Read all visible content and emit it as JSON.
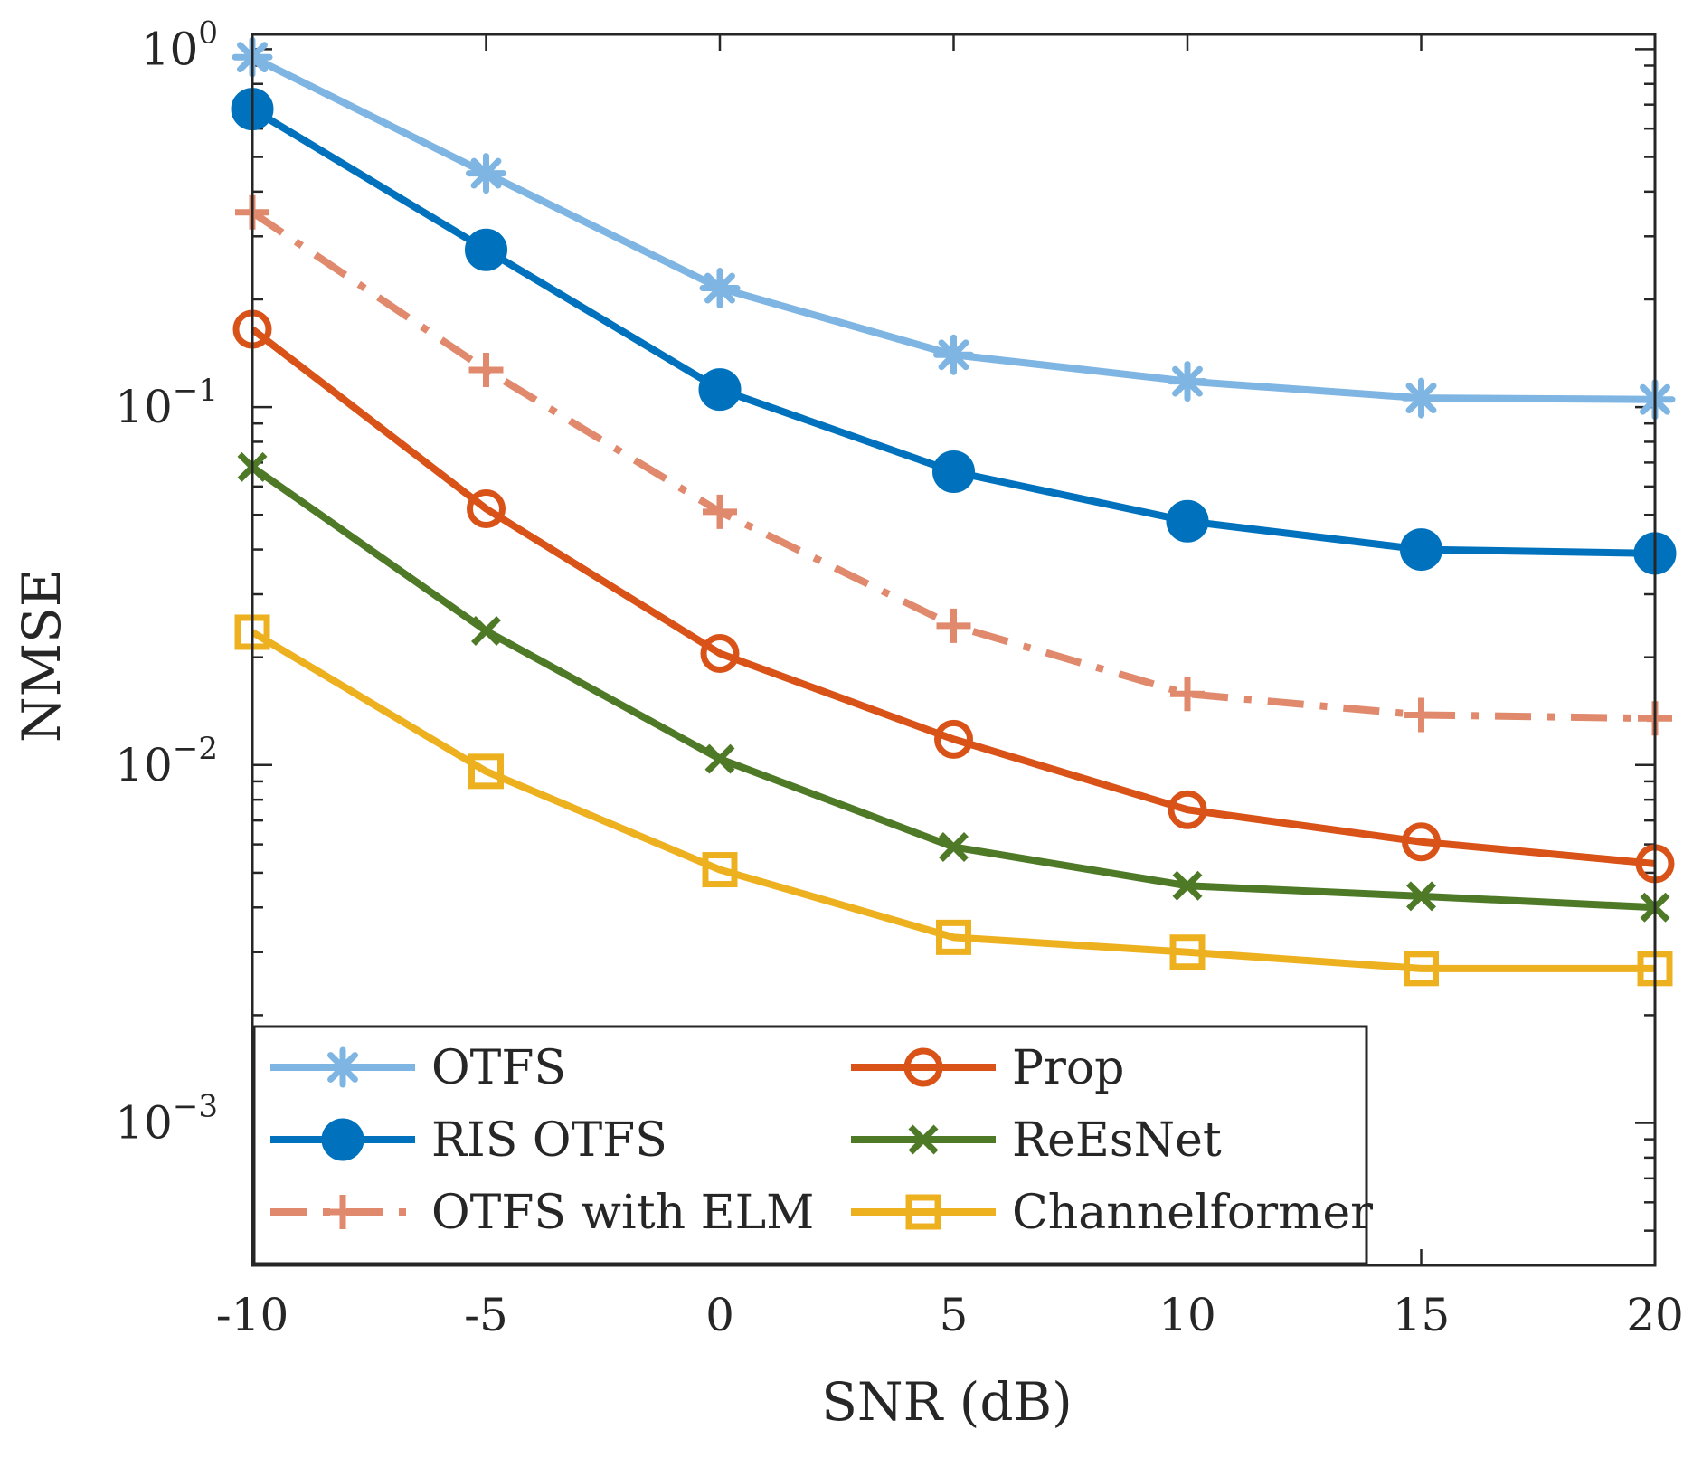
{
  "chart_data": {
    "type": "line",
    "title": "",
    "xlabel": "SNR (dB)",
    "ylabel": "NMSE",
    "yscale": "log",
    "xlim": [
      -10,
      20
    ],
    "ylim": [
      0.0004,
      1.1
    ],
    "grid": false,
    "legend_position": "bottom-left",
    "x": [
      -10,
      -5,
      0,
      5,
      10,
      15,
      20
    ],
    "x_tick_labels": [
      "-10",
      "-5",
      "0",
      "5",
      "10",
      "15",
      "20"
    ],
    "y_ticks": [
      {
        "value": 1,
        "base": "10",
        "exp": "0"
      },
      {
        "value": 0.1,
        "base": "10",
        "exp": "−1"
      },
      {
        "value": 0.01,
        "base": "10",
        "exp": "−2"
      },
      {
        "value": 0.001,
        "base": "10",
        "exp": "−3"
      }
    ],
    "series": [
      {
        "name": "OTFS",
        "color": "#7EB5E2",
        "marker": "asterisk",
        "dash": "solid",
        "values": [
          0.95,
          0.45,
          0.215,
          0.14,
          0.118,
          0.106,
          0.105
        ]
      },
      {
        "name": "RIS OTFS",
        "color": "#0072BD",
        "marker": "filled-circle",
        "dash": "solid",
        "values": [
          0.68,
          0.275,
          0.112,
          0.066,
          0.048,
          0.04,
          0.039
        ]
      },
      {
        "name": "OTFS with ELM",
        "color": "#E0896C",
        "marker": "plus",
        "dash": "dashdot",
        "values": [
          0.35,
          0.127,
          0.051,
          0.0245,
          0.0158,
          0.0138,
          0.0135
        ]
      },
      {
        "name": "Prop",
        "color": "#D95319",
        "marker": "open-circle",
        "dash": "solid",
        "values": [
          0.165,
          0.052,
          0.0205,
          0.0118,
          0.0075,
          0.0061,
          0.0053
        ]
      },
      {
        "name": "ReEsNet",
        "color": "#4E7A27",
        "marker": "x",
        "dash": "solid",
        "values": [
          0.068,
          0.0237,
          0.0104,
          0.0059,
          0.0046,
          0.0043,
          0.004
        ]
      },
      {
        "name": "Channelformer",
        "color": "#EDB120",
        "marker": "open-square",
        "dash": "solid",
        "values": [
          0.0235,
          0.0096,
          0.0051,
          0.0033,
          0.003,
          0.0027,
          0.0027
        ]
      }
    ]
  }
}
